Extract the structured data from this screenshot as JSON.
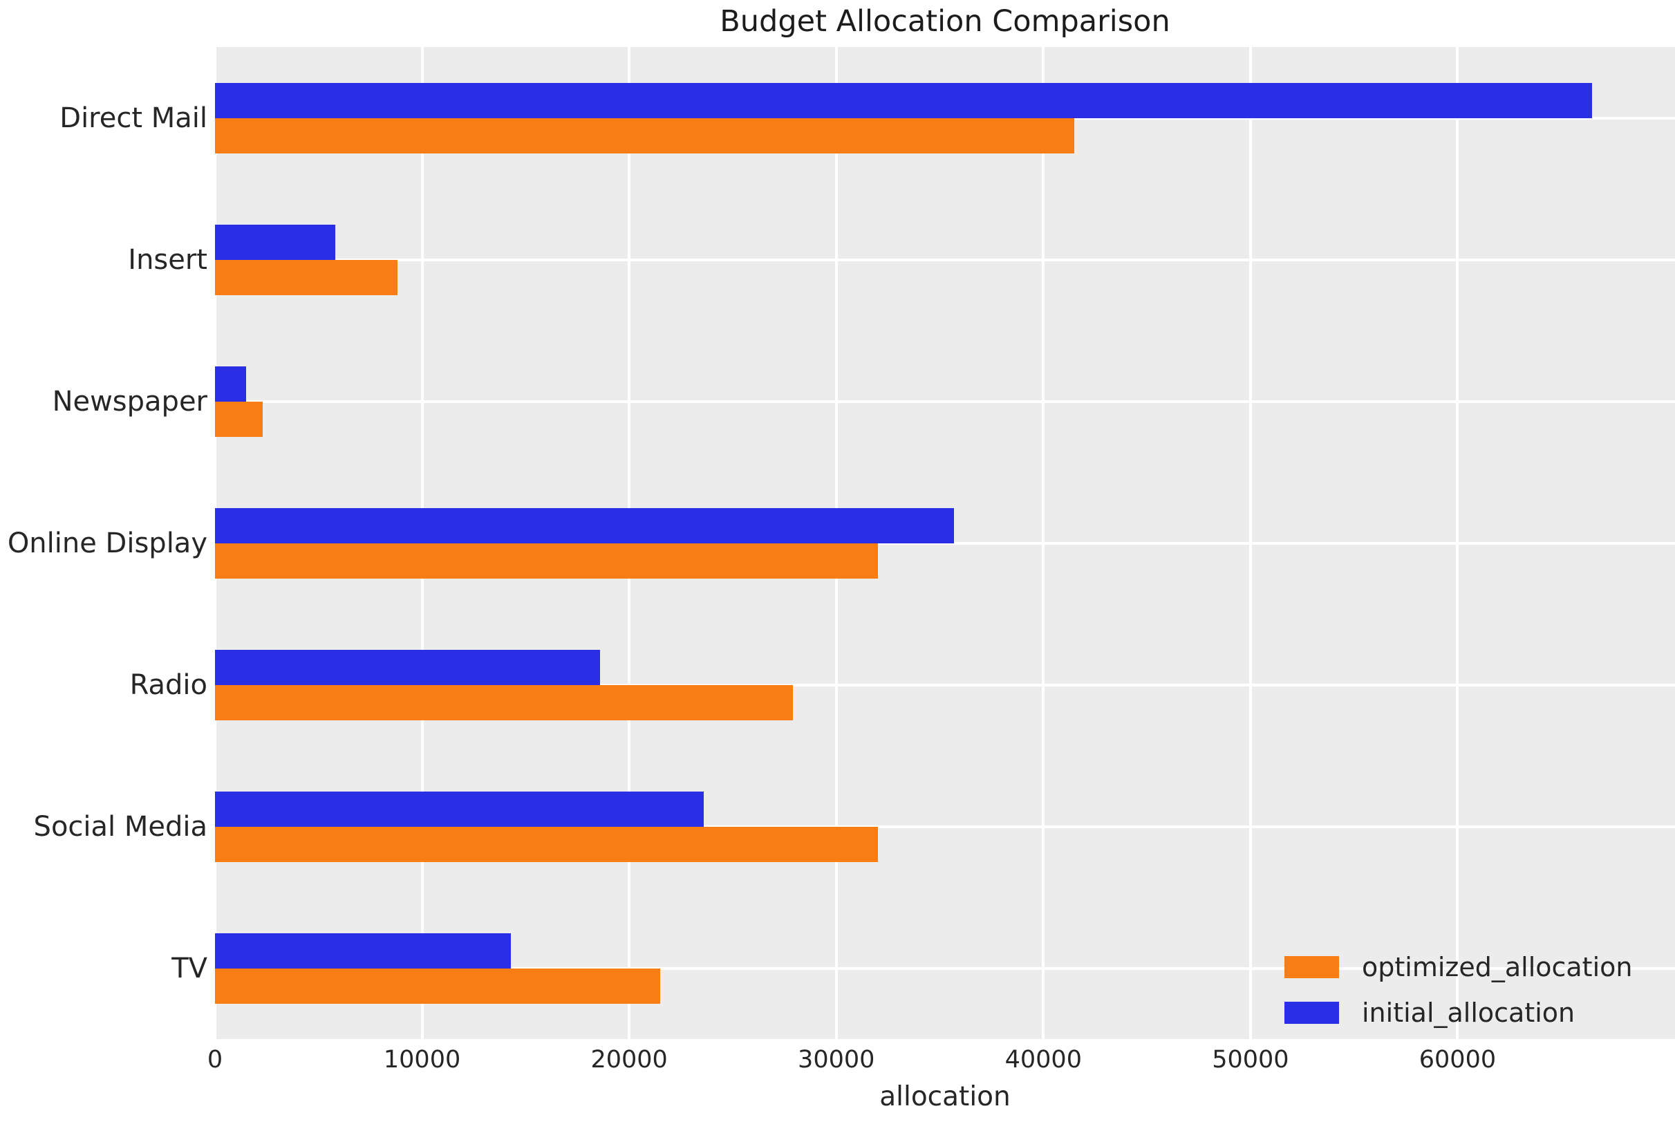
{
  "chart_data": {
    "type": "bar",
    "orientation": "horizontal",
    "title": "Budget Allocation Comparison",
    "xlabel": "allocation",
    "ylabel": "",
    "categories": [
      "Direct Mail",
      "Insert",
      "Newspaper",
      "Online Display",
      "Radio",
      "Social Media",
      "TV"
    ],
    "series": [
      {
        "name": "optimized_allocation",
        "color": "#f87d14",
        "values": [
          41500,
          8800,
          2300,
          32000,
          27900,
          32000,
          21500
        ]
      },
      {
        "name": "initial_allocation",
        "color": "#2a2ee4",
        "values": [
          66500,
          5800,
          1500,
          35700,
          18600,
          23600,
          14300
        ]
      }
    ],
    "x_ticks": [
      0,
      10000,
      20000,
      30000,
      40000,
      50000,
      60000
    ],
    "xlim": [
      0,
      70500
    ],
    "grid": true,
    "legend_position": "lower right",
    "plot_bg_color": "#ececec",
    "grid_color": "#ffffff",
    "text_color": "#262626"
  }
}
